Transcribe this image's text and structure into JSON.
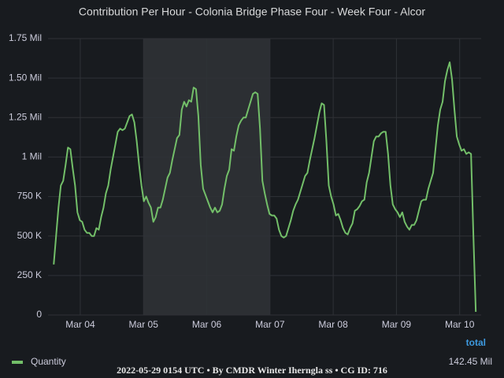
{
  "chart_data": {
    "type": "line",
    "title": "Contribution Per Hour - Colonia Bridge Phase Four - Week Four - Alcor",
    "footer": "2022-05-29 0154 UTC • By CMDR Winter Iherngla ss • CG ID: 716",
    "legend_header": "total",
    "xlim": [
      3.49,
      10.34
    ],
    "xticks": [
      {
        "value": 4,
        "label": "Mar 04"
      },
      {
        "value": 5,
        "label": "Mar 05"
      },
      {
        "value": 6,
        "label": "Mar 06"
      },
      {
        "value": 7,
        "label": "Mar 07"
      },
      {
        "value": 8,
        "label": "Mar 08"
      },
      {
        "value": 9,
        "label": "Mar 09"
      },
      {
        "value": 10,
        "label": "Mar 10"
      }
    ],
    "ylim": [
      0,
      1750000
    ],
    "yticks": [
      0,
      {
        "value": 250000,
        "label": "250 K"
      },
      {
        "value": 500000,
        "label": "500 K"
      },
      {
        "value": 750000,
        "label": "750 K"
      },
      {
        "value": 1000000,
        "label": "1 Mil"
      },
      {
        "value": 1250000,
        "label": "1.25 Mil"
      },
      {
        "value": 1500000,
        "label": "1.50 Mil"
      },
      {
        "value": 1750000,
        "label": "1.75 Mil"
      }
    ],
    "grid": true,
    "shaded_region": [
      5,
      7
    ],
    "x": [
      3.58,
      3.6175,
      3.655,
      3.6925,
      3.73,
      3.7675,
      3.805,
      3.8425,
      3.88,
      3.9175,
      3.955,
      3.9925,
      4.03,
      4.0675,
      4.105,
      4.1425,
      4.18,
      4.2175,
      4.255,
      4.2925,
      4.33,
      4.3675,
      4.405,
      4.4425,
      4.48,
      4.5175,
      4.555,
      4.5925,
      4.63,
      4.6675,
      4.705,
      4.7425,
      4.78,
      4.8175,
      4.855,
      4.8925,
      4.93,
      4.9675,
      5.005,
      5.0425,
      5.08,
      5.1175,
      5.155,
      5.1925,
      5.23,
      5.2675,
      5.305,
      5.3425,
      5.38,
      5.4175,
      5.455,
      5.4925,
      5.53,
      5.5675,
      5.605,
      5.6425,
      5.68,
      5.7175,
      5.755,
      5.7925,
      5.83,
      5.8675,
      5.905,
      5.9425,
      5.98,
      6.0175,
      6.055,
      6.0925,
      6.13,
      6.1675,
      6.205,
      6.2425,
      6.28,
      6.3175,
      6.355,
      6.3925,
      6.43,
      6.4675,
      6.505,
      6.5425,
      6.58,
      6.6175,
      6.655,
      6.6925,
      6.73,
      6.7675,
      6.805,
      6.8425,
      6.88,
      6.9175,
      6.955,
      6.9925,
      7.03,
      7.0675,
      7.105,
      7.1425,
      7.18,
      7.2175,
      7.255,
      7.2925,
      7.33,
      7.3675,
      7.405,
      7.4425,
      7.48,
      7.5175,
      7.555,
      7.5925,
      7.63,
      7.6675,
      7.705,
      7.7425,
      7.78,
      7.8175,
      7.855,
      7.8925,
      7.93,
      7.9675,
      8.005,
      8.0425,
      8.08,
      8.1175,
      8.155,
      8.1925,
      8.23,
      8.2675,
      8.305,
      8.3425,
      8.38,
      8.4175,
      8.455,
      8.4925,
      8.53,
      8.5675,
      8.605,
      8.6425,
      8.68,
      8.7175,
      8.755,
      8.7925,
      8.83,
      8.8675,
      8.905,
      8.9425,
      8.98,
      9.0175,
      9.055,
      9.0925,
      9.13,
      9.1675,
      9.205,
      9.2425,
      9.28,
      9.3175,
      9.355,
      9.3925,
      9.43,
      9.4675,
      9.505,
      9.5425,
      9.58,
      9.6175,
      9.655,
      9.6925,
      9.73,
      9.7675,
      9.805,
      9.8425,
      9.88,
      9.9175,
      9.955,
      9.9925,
      10.03,
      10.0675,
      10.105,
      10.1425,
      10.18,
      10.2175,
      10.255
    ],
    "series": [
      {
        "name": "Quantity",
        "color": "#73bf69",
        "legend_value": "142.45 Mil",
        "values": [
          320000,
          500000,
          680000,
          820000,
          850000,
          950000,
          1060000,
          1050000,
          930000,
          820000,
          650000,
          600000,
          590000,
          540000,
          520000,
          520000,
          500000,
          500000,
          550000,
          540000,
          620000,
          680000,
          770000,
          820000,
          920000,
          1000000,
          1080000,
          1160000,
          1180000,
          1170000,
          1180000,
          1220000,
          1260000,
          1270000,
          1220000,
          1100000,
          950000,
          820000,
          720000,
          750000,
          710000,
          680000,
          590000,
          620000,
          680000,
          680000,
          730000,
          800000,
          870000,
          900000,
          980000,
          1050000,
          1120000,
          1140000,
          1300000,
          1350000,
          1320000,
          1360000,
          1350000,
          1440000,
          1430000,
          1260000,
          950000,
          800000,
          760000,
          720000,
          680000,
          650000,
          680000,
          650000,
          660000,
          700000,
          800000,
          880000,
          920000,
          1050000,
          1040000,
          1130000,
          1200000,
          1230000,
          1250000,
          1250000,
          1300000,
          1350000,
          1400000,
          1410000,
          1400000,
          1180000,
          850000,
          770000,
          700000,
          640000,
          630000,
          630000,
          610000,
          540000,
          500000,
          490000,
          500000,
          550000,
          600000,
          660000,
          700000,
          730000,
          780000,
          830000,
          880000,
          900000,
          980000,
          1050000,
          1120000,
          1200000,
          1280000,
          1340000,
          1330000,
          1100000,
          820000,
          750000,
          700000,
          630000,
          640000,
          600000,
          550000,
          520000,
          510000,
          550000,
          580000,
          660000,
          670000,
          690000,
          720000,
          730000,
          840000,
          900000,
          1000000,
          1100000,
          1130000,
          1130000,
          1150000,
          1160000,
          1160000,
          1020000,
          820000,
          700000,
          670000,
          650000,
          620000,
          650000,
          590000,
          560000,
          540000,
          570000,
          570000,
          600000,
          660000,
          720000,
          730000,
          730000,
          800000,
          850000,
          900000,
          1050000,
          1200000,
          1300000,
          1350000,
          1480000,
          1550000,
          1600000,
          1490000,
          1300000,
          1130000,
          1080000,
          1040000,
          1050000,
          1020000,
          1030000,
          1020000,
          500000,
          20000
        ]
      }
    ]
  }
}
